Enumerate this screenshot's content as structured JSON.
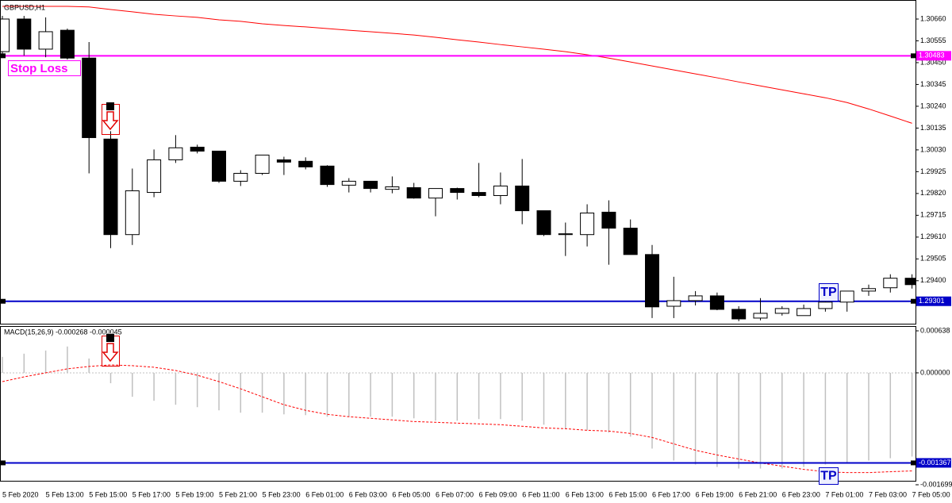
{
  "chart_data": [
    {
      "type": "candlestick",
      "title": "GBPUSD,H1",
      "categories": [
        "5 Feb 2020",
        null,
        "5 Feb 13:00",
        null,
        "5 Feb 15:00",
        null,
        "5 Feb 17:00",
        null,
        "5 Feb 19:00",
        null,
        "5 Feb 21:00",
        null,
        "5 Feb 23:00",
        null,
        "6 Feb 01:00",
        null,
        "6 Feb 03:00",
        null,
        "6 Feb 05:00",
        null,
        "6 Feb 07:00",
        null,
        "6 Feb 09:00",
        null,
        "6 Feb 11:00",
        null,
        "6 Feb 13:00",
        null,
        "6 Feb 15:00",
        null,
        "6 Feb 17:00",
        null,
        "6 Feb 19:00",
        null,
        "6 Feb 21:00",
        null,
        "6 Feb 23:00",
        null,
        "7 Feb 01:00",
        null,
        "7 Feb 03:00",
        null,
        "7 Feb 05:00"
      ],
      "open": [
        1.30503,
        1.3066,
        1.30515,
        1.30606,
        1.30472,
        1.30082,
        1.29622,
        1.29825,
        1.29982,
        1.30043,
        1.30024,
        1.29879,
        1.29917,
        1.29982,
        1.29975,
        1.29952,
        1.2986,
        1.29879,
        1.2984,
        1.29848,
        1.29798,
        1.29844,
        1.29825,
        1.2981,
        1.29856,
        1.29737,
        1.29622,
        1.29622,
        1.2973,
        1.29653,
        1.29526,
        1.29277,
        1.29304,
        1.29327,
        1.29262,
        1.2922,
        1.29243,
        1.29232,
        1.29266,
        1.29297,
        1.2935,
        1.29366,
        1.29412
      ],
      "high": [
        1.30675,
        1.30675,
        1.30668,
        1.30614,
        1.30549,
        1.3012,
        1.2994,
        1.30032,
        1.30101,
        1.30055,
        1.30024,
        1.29932,
        1.30005,
        1.29997,
        1.29994,
        1.29956,
        1.29894,
        1.29879,
        1.29902,
        1.29871,
        1.29844,
        1.29848,
        1.29967,
        1.29921,
        1.29986,
        1.29737,
        1.2968,
        1.29768,
        1.29787,
        1.29695,
        1.29572,
        1.29419,
        1.2935,
        1.29343,
        1.29277,
        1.29316,
        1.29277,
        1.29285,
        1.29346,
        1.2935,
        1.29381,
        1.29431,
        1.29431
      ],
      "low": [
        1.30484,
        1.30484,
        1.30476,
        1.30465,
        1.29917,
        1.29557,
        1.29572,
        1.29802,
        1.29967,
        1.30013,
        1.29871,
        1.29856,
        1.29909,
        1.29909,
        1.29936,
        1.29852,
        1.29825,
        1.29825,
        1.29821,
        1.29795,
        1.2971,
        1.29791,
        1.29802,
        1.29768,
        1.29672,
        1.29615,
        1.29519,
        1.29565,
        1.29477,
        1.29526,
        1.2922,
        1.2922,
        1.29281,
        1.29258,
        1.29205,
        1.29209,
        1.29232,
        1.29232,
        1.29251,
        1.29251,
        1.29327,
        1.29343,
        1.29362
      ],
      "close": [
        1.3066,
        1.30515,
        1.30599,
        1.30472,
        1.30089,
        1.29622,
        1.29833,
        1.29982,
        1.3004,
        1.30024,
        1.29879,
        1.29917,
        1.30005,
        1.29971,
        1.29948,
        1.29863,
        1.29879,
        1.29844,
        1.29852,
        1.29798,
        1.29844,
        1.29825,
        1.2981,
        1.29856,
        1.29737,
        1.29622,
        1.29626,
        1.29726,
        1.29653,
        1.29526,
        1.29274,
        1.29304,
        1.29327,
        1.29262,
        1.29216,
        1.29243,
        1.29266,
        1.29266,
        1.29297,
        1.2935,
        1.29362,
        1.29412,
        1.29381
      ],
      "up_color": "#ffffff",
      "down_color": "#000000",
      "ma": {
        "color": "#ff0000",
        "values": [
          1.30721,
          1.30721,
          1.30721,
          1.30721,
          1.30718,
          1.30706,
          1.30695,
          1.30683,
          1.30675,
          1.30668,
          1.30656,
          1.30649,
          1.30637,
          1.30629,
          1.30622,
          1.30614,
          1.30606,
          1.30599,
          1.30591,
          1.30583,
          1.30572,
          1.3056,
          1.30549,
          1.30537,
          1.30526,
          1.30515,
          1.30503,
          1.30488,
          1.30472,
          1.30453,
          1.30434,
          1.30415,
          1.30396,
          1.30377,
          1.30357,
          1.30338,
          1.30319,
          1.303,
          1.30281,
          1.30258,
          1.30227,
          1.30193,
          1.30158
        ]
      },
      "ylim": [
        1.29193,
        1.30744
      ],
      "yticks": [
        {
          "value": 1.3066,
          "label": "1.30660"
        },
        1.30555,
        {
          "value": 1.3045,
          "label": "1.30450"
        },
        1.30345,
        {
          "value": 1.3024,
          "label": "1.30240"
        },
        1.30135,
        {
          "value": 1.3003,
          "label": "1.30030"
        },
        1.29925,
        {
          "value": 1.2982,
          "label": "1.29820"
        },
        1.29715,
        {
          "value": 1.2961,
          "label": "1.29610"
        },
        1.29505,
        {
          "value": 1.294,
          "label": "1.29400"
        }
      ],
      "lines": [
        {
          "value": 1.30483,
          "color": "#ff00ff",
          "annotation": "Stop Loss"
        },
        {
          "value": 1.29301,
          "color": "#0000c8",
          "annotation": "TP"
        }
      ]
    },
    {
      "type": "macd",
      "title": "MACD(15,26,9) -0.000268 -0.000045",
      "histogram": {
        "color": "#c0c0c0",
        "values": [
          0.000242,
          0.000291,
          0.000339,
          0.0004,
          0.000218,
          -0.000157,
          -0.000363,
          -0.000424,
          -0.000484,
          -0.000521,
          -0.000569,
          -0.000605,
          -0.000605,
          -0.00063,
          -0.000642,
          -0.000666,
          -0.000666,
          -0.000666,
          -0.000666,
          -0.00069,
          -0.000726,
          -0.000726,
          -0.000702,
          -0.000702,
          -0.000726,
          -0.000787,
          -0.000848,
          -0.000872,
          -0.000908,
          -0.000969,
          -0.00115,
          -0.001332,
          -0.001392,
          -0.001429,
          -0.001453,
          -0.001453,
          -0.001453,
          -0.001429,
          -0.001392,
          -0.001356,
          -0.001332,
          -0.001296,
          -0.001271
        ]
      },
      "signal": {
        "color": "#ff0000",
        "values": [
          -0.000133,
          -6.1e-05,
          0,
          6.1e-05,
          9.7e-05,
          0.000121,
          0.000109,
          8.5e-05,
          3.6e-05,
          -3.6e-05,
          -0.000133,
          -0.000242,
          -0.000363,
          -0.000484,
          -0.000569,
          -0.00063,
          -0.000666,
          -0.00069,
          -0.000714,
          -0.000739,
          -0.000751,
          -0.000763,
          -0.000775,
          -0.000787,
          -0.000811,
          -0.000836,
          -0.000848,
          -0.000872,
          -0.000884,
          -0.00092,
          -0.000981,
          -0.001078,
          -0.001175,
          -0.001247,
          -0.001308,
          -0.001368,
          -0.001417,
          -0.001465,
          -0.001501,
          -0.001514,
          -0.001514,
          -0.001501,
          -0.001489
        ]
      },
      "ylim": [
        -0.001699,
        0.000638
      ],
      "yticks": [
        0.000638,
        {
          "value": 0,
          "label": "0.000000"
        },
        -0.001699
      ],
      "lines": [
        {
          "value": -0.001367,
          "color": "#0000c8",
          "annotation": "TP"
        }
      ]
    }
  ]
}
